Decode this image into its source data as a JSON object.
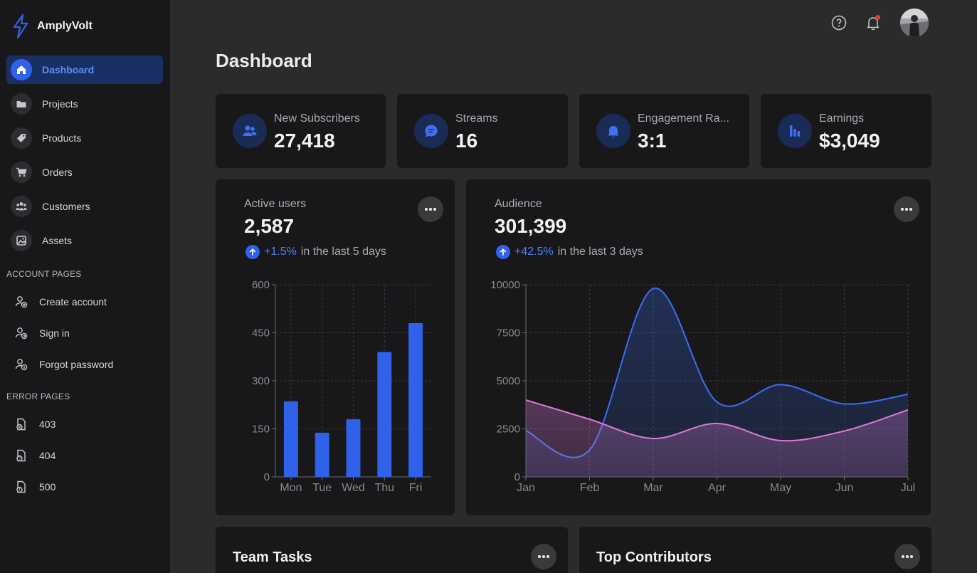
{
  "app": {
    "name": "AmplyVolt"
  },
  "sidebar": {
    "items": [
      {
        "label": "Dashboard",
        "icon": "home-icon",
        "active": true
      },
      {
        "label": "Projects",
        "icon": "folder-icon"
      },
      {
        "label": "Products",
        "icon": "tag-icon"
      },
      {
        "label": "Orders",
        "icon": "cart-icon"
      },
      {
        "label": "Customers",
        "icon": "users-icon"
      },
      {
        "label": "Assets",
        "icon": "image-icon"
      }
    ],
    "account_title": "ACCOUNT PAGES",
    "account_items": [
      {
        "label": "Create account",
        "icon": "user-add-icon"
      },
      {
        "label": "Sign in",
        "icon": "user-signin-icon"
      },
      {
        "label": "Forgot password",
        "icon": "user-key-icon"
      }
    ],
    "error_title": "ERROR PAGES",
    "error_items": [
      {
        "label": "403",
        "icon": "file-lock-icon"
      },
      {
        "label": "404",
        "icon": "file-question-icon"
      },
      {
        "label": "500",
        "icon": "file-error-icon"
      }
    ]
  },
  "header": {
    "title": "Dashboard"
  },
  "stats": [
    {
      "label": "New Subscribers",
      "value": "27,418",
      "icon": "users-icon"
    },
    {
      "label": "Streams",
      "value": "16",
      "icon": "chat-icon"
    },
    {
      "label": "Engagement Ra...",
      "value": "3:1",
      "icon": "bell-icon"
    },
    {
      "label": "Earnings",
      "value": "$3,049",
      "icon": "bar-chart-icon"
    }
  ],
  "active_users": {
    "label": "Active users",
    "value": "2,587",
    "trend_pct": "+1.5%",
    "trend_text": "in the last 5 days"
  },
  "audience": {
    "label": "Audience",
    "value": "301,399",
    "trend_pct": "+42.5%",
    "trend_text": "in the last 3 days"
  },
  "chart_data": [
    {
      "type": "bar",
      "categories": [
        "Mon",
        "Tue",
        "Wed",
        "Thu",
        "Fri"
      ],
      "values": [
        236,
        138,
        180,
        390,
        480
      ],
      "ylim": [
        0,
        600
      ],
      "yticks": [
        "0",
        "150",
        "300",
        "450",
        "600"
      ],
      "grid": true,
      "color": "#2f62e8"
    },
    {
      "type": "area",
      "categories": [
        "Jan",
        "Feb",
        "Mar",
        "Apr",
        "May",
        "Jun",
        "Jul"
      ],
      "series": [
        {
          "values": [
            2400,
            1400,
            9800,
            3900,
            4800,
            3800,
            4300
          ],
          "color": "#3b6ef0"
        },
        {
          "values": [
            4000,
            3000,
            2000,
            2780,
            1890,
            2390,
            3490
          ],
          "color": "#d87ad8"
        }
      ],
      "ylim": [
        0,
        10000
      ],
      "yticks": [
        "0",
        "2500",
        "5000",
        "7500",
        "10000"
      ],
      "grid": true
    }
  ],
  "bottom": {
    "team_tasks": "Team Tasks",
    "top_contributors": "Top Contributors"
  }
}
